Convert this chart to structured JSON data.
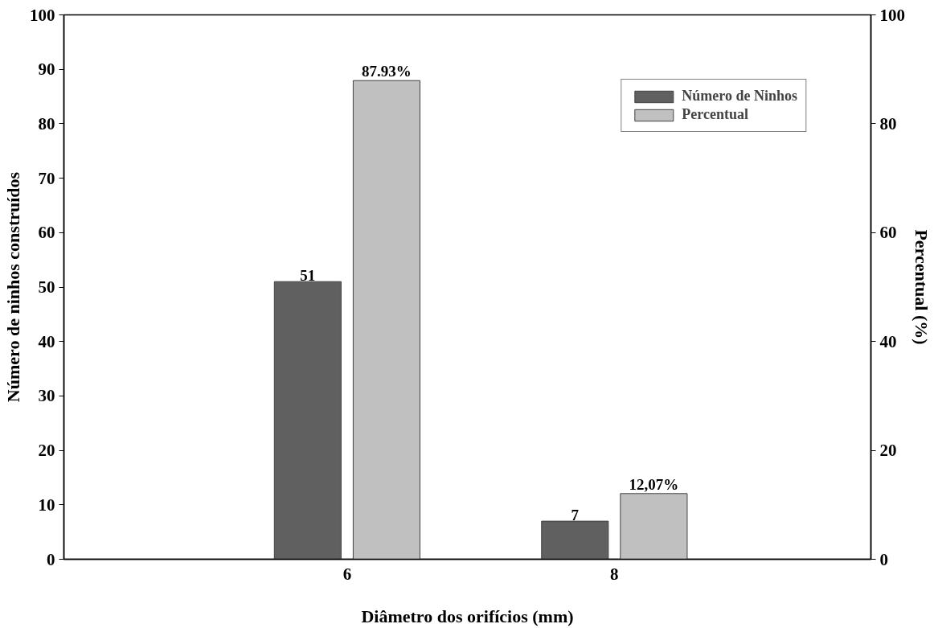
{
  "chart_data": {
    "type": "bar",
    "xlabel": "Diâmetro dos orifícios (mm)",
    "ylabel": "Número de ninhos construídos",
    "y2label": "Percentual (%)",
    "categories": [
      "6",
      "8"
    ],
    "series": [
      {
        "name": "Número de Ninhos",
        "color": "#606060",
        "values": [
          51,
          7
        ],
        "value_labels": [
          "51",
          "7"
        ]
      },
      {
        "name": "Percentual",
        "color": "#c0c0c0",
        "values": [
          87.93,
          12.07
        ],
        "value_labels": [
          "87.93%",
          "12,07%"
        ],
        "axis": "y2"
      }
    ],
    "ylim": [
      0,
      100
    ],
    "yticks": [
      0,
      10,
      20,
      30,
      40,
      50,
      60,
      70,
      80,
      90,
      100
    ],
    "y2lim": [
      0,
      100
    ],
    "y2ticks": [
      0,
      20,
      40,
      60,
      80,
      100
    ],
    "legend": "top right",
    "grid": false
  }
}
